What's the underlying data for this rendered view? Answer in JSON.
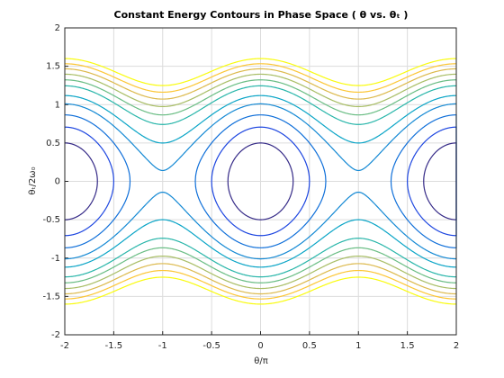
{
  "chart_data": {
    "type": "contour",
    "title": "Constant Energy Contours in Phase Space ( θ vs. θₜ )",
    "xlabel": "θ/π",
    "ylabel": "θₜ/2ω₀",
    "levels": [
      0.25,
      0.5,
      0.75,
      1.02,
      1.25,
      1.55,
      1.75,
      1.95,
      2.15,
      2.35,
      2.56
    ],
    "colors": [
      "#352a87",
      "#1c45e0",
      "#0f6fd9",
      "#1489d4",
      "#09a4c6",
      "#27b5a9",
      "#6abd84",
      "#a8bd65",
      "#dcb94c",
      "#fcc636",
      "#f9fb0e"
    ],
    "xlim": [
      -2,
      2
    ],
    "xticks": [
      -2,
      -1.5,
      -1,
      -0.5,
      0,
      0.5,
      1,
      1.5,
      2
    ],
    "ylim": [
      -2,
      2
    ],
    "yticks": [
      -2,
      -1.5,
      -1,
      -0.5,
      0,
      0.5,
      1,
      1.5,
      2
    ],
    "grid": true
  }
}
